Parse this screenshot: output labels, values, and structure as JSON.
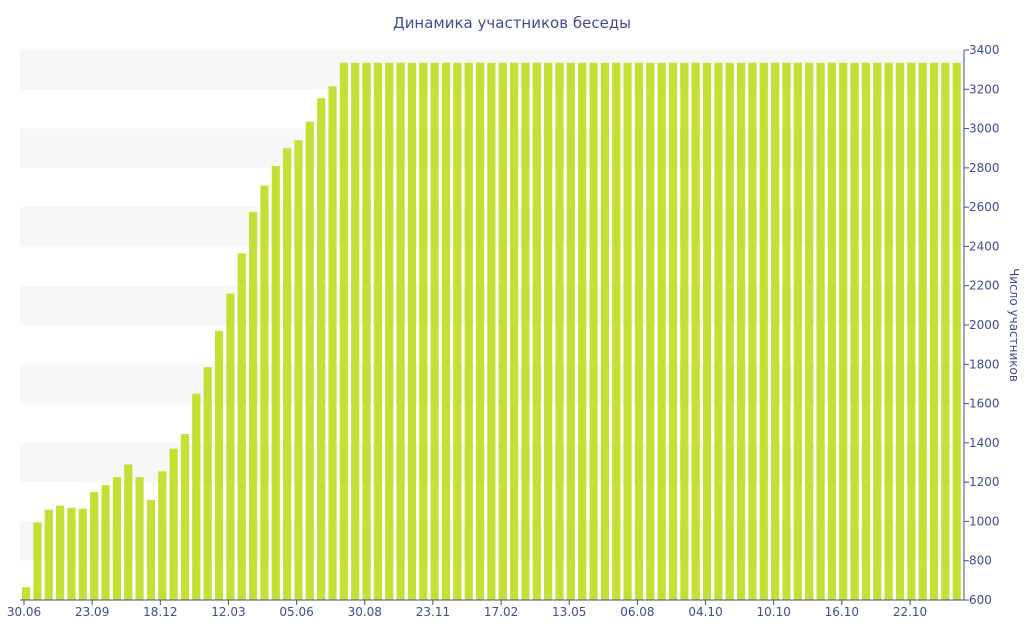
{
  "chart_data": {
    "type": "bar",
    "title": "Динамика участников беседы",
    "xlabel": "",
    "ylabel": "Число участников",
    "y_axis_side": "right",
    "ylim": [
      600,
      3400
    ],
    "yticks": [
      600,
      800,
      1000,
      1200,
      1400,
      1600,
      1800,
      2000,
      2200,
      2400,
      2600,
      2800,
      3000,
      3200,
      3400
    ],
    "xtick_labels": [
      "30.06",
      "23.09",
      "18.12",
      "12.03",
      "05.06",
      "30.08",
      "23.11",
      "17.02",
      "13.05",
      "06.08",
      "04.10",
      "10.10",
      "16.10",
      "22.10"
    ],
    "bar_color": "#c3e034",
    "grid": "alternating horizontal bands",
    "values": [
      665,
      995,
      1060,
      1080,
      1070,
      1065,
      1150,
      1185,
      1225,
      1290,
      1225,
      1110,
      1255,
      1370,
      1445,
      1650,
      1785,
      1970,
      2160,
      2365,
      2575,
      2710,
      2810,
      2900,
      2940,
      3035,
      3155,
      3215,
      3335,
      3335,
      3335,
      3335,
      3335,
      3335,
      3335,
      3335,
      3335,
      3335,
      3335,
      3335,
      3335,
      3335,
      3335,
      3335,
      3335,
      3335,
      3335,
      3335,
      3335,
      3335,
      3335,
      3335,
      3335,
      3335,
      3335,
      3335,
      3335,
      3335,
      3335,
      3335,
      3335,
      3335,
      3335,
      3335,
      3335,
      3335,
      3335,
      3335,
      3335,
      3335,
      3335,
      3335,
      3335,
      3335,
      3335,
      3335,
      3335,
      3335,
      3335,
      3335,
      3335,
      3335,
      3335
    ]
  }
}
